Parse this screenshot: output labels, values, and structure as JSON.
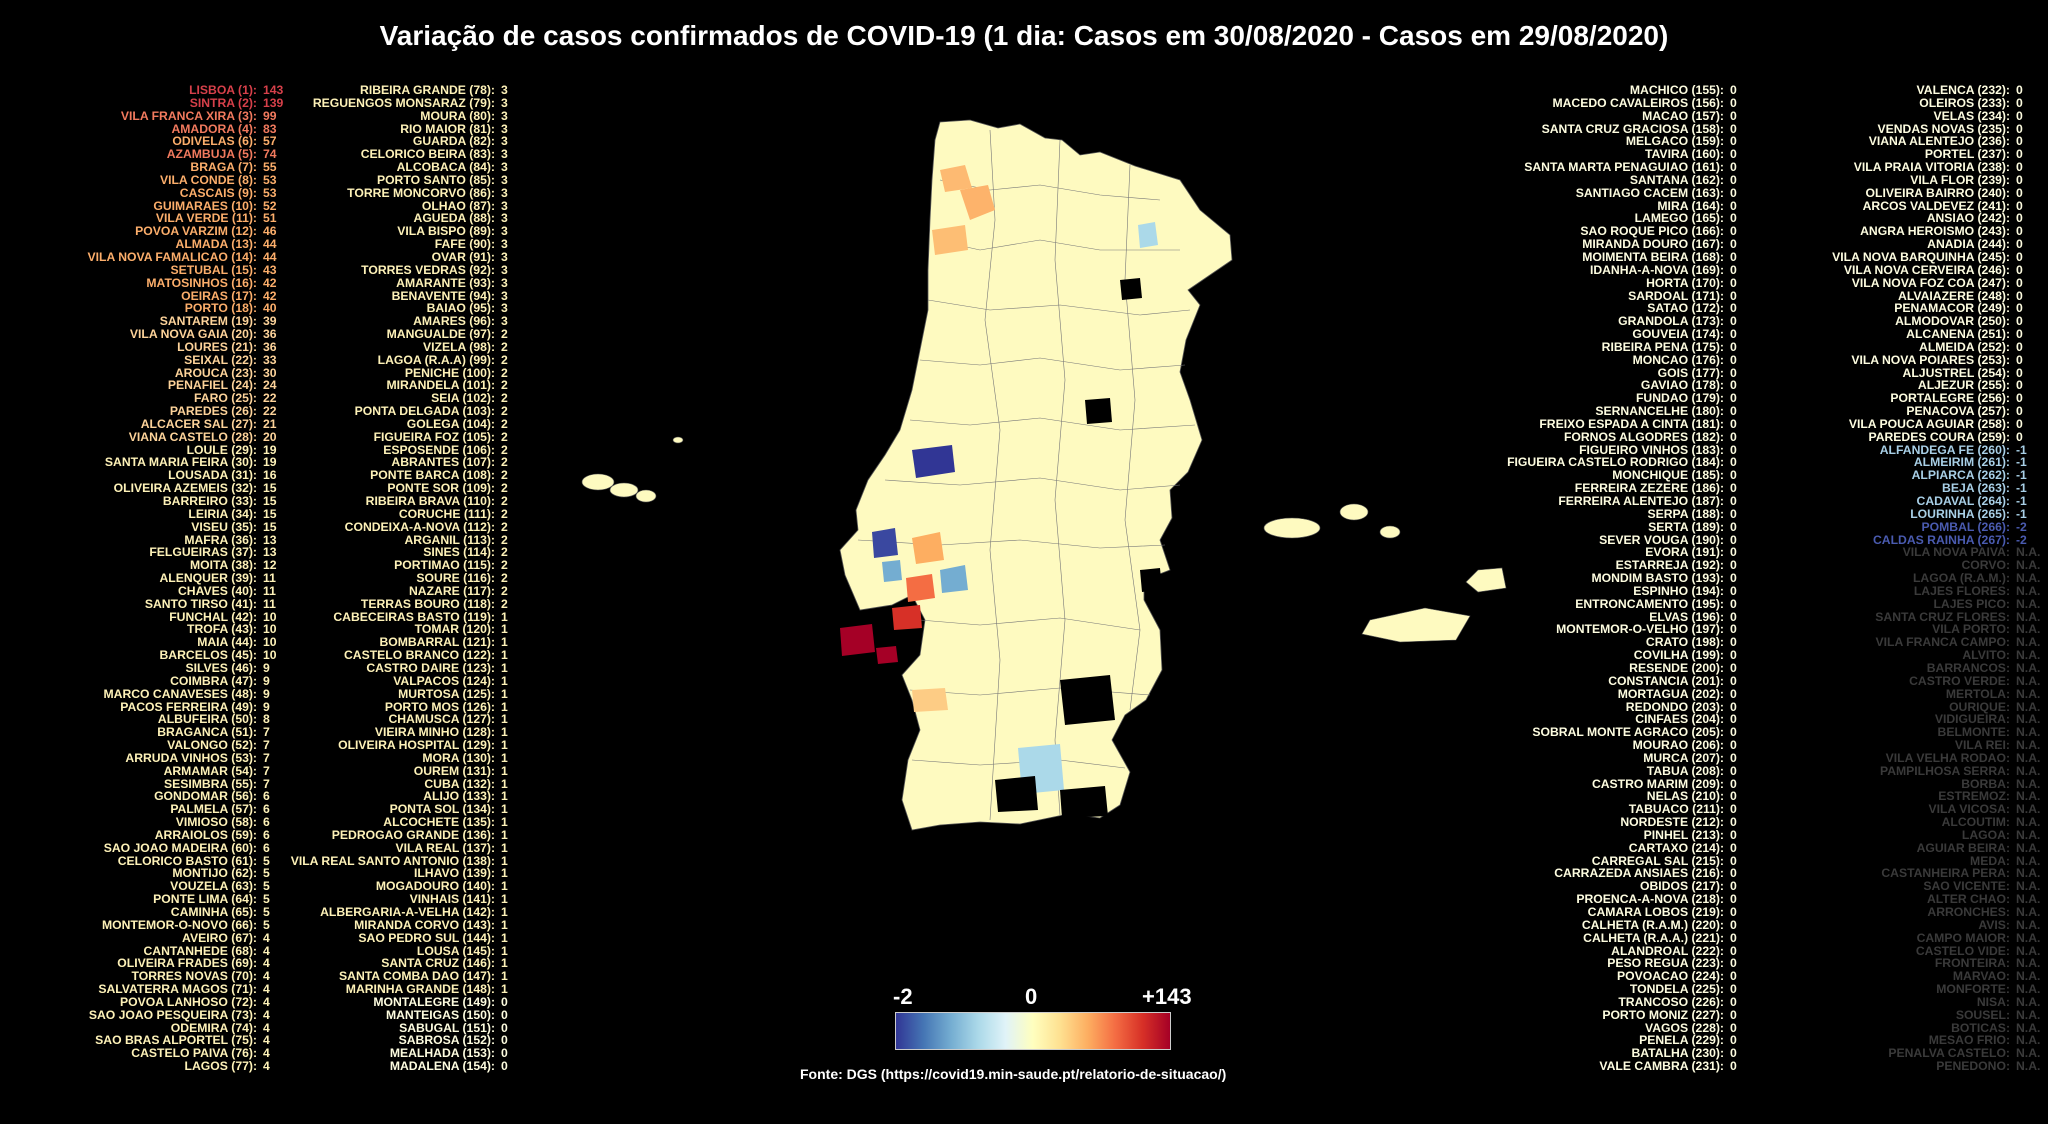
{
  "title": "Variação de casos confirmados de COVID-19 (1 dia: Casos em 30/08/2020 - Casos em 29/08/2020)",
  "colorbar": {
    "min_label": "-2",
    "mid_label": "0",
    "max_label": "+143",
    "colors": [
      "#313695",
      "#4575b4",
      "#74add1",
      "#abd9e9",
      "#e0f3f8",
      "#ffffbf",
      "#fee090",
      "#fdae61",
      "#f46d43",
      "#d73027",
      "#a50026"
    ]
  },
  "source": "Fonte: DGS (https://covid19.min-saude.pt/relatorio-de-situacao/)",
  "columns": [
    [
      [
        "LISBOA (1):",
        "143"
      ],
      [
        "SINTRA (2):",
        "139"
      ],
      [
        "VILA FRANCA XIRA (3):",
        "99"
      ],
      [
        "AMADORA (4):",
        "83"
      ],
      [
        "ODIVELAS (6):",
        "57"
      ],
      [
        "AZAMBUJA (5):",
        "74"
      ],
      [
        "BRAGA (7):",
        "55"
      ],
      [
        "VILA CONDE (8):",
        "53"
      ],
      [
        "CASCAIS (9):",
        "53"
      ],
      [
        "GUIMARAES (10):",
        "52"
      ],
      [
        "VILA VERDE (11):",
        "51"
      ],
      [
        "POVOA VARZIM (12):",
        "46"
      ],
      [
        "ALMADA (13):",
        "44"
      ],
      [
        "VILA NOVA FAMALICAO (14):",
        "44"
      ],
      [
        "SETUBAL (15):",
        "43"
      ],
      [
        "MATOSINHOS (16):",
        "42"
      ],
      [
        "OEIRAS (17):",
        "42"
      ],
      [
        "PORTO (18):",
        "40"
      ],
      [
        "SANTAREM (19):",
        "39"
      ],
      [
        "VILA NOVA GAIA (20):",
        "36"
      ],
      [
        "LOURES (21):",
        "36"
      ],
      [
        "SEIXAL (22):",
        "33"
      ],
      [
        "AROUCA (23):",
        "30"
      ],
      [
        "PENAFIEL (24):",
        "24"
      ],
      [
        "FARO (25):",
        "22"
      ],
      [
        "PAREDES (26):",
        "22"
      ],
      [
        "ALCACER SAL (27):",
        "21"
      ],
      [
        "VIANA CASTELO (28):",
        "20"
      ],
      [
        "LOULE (29):",
        "19"
      ],
      [
        "SANTA MARIA FEIRA (30):",
        "19"
      ],
      [
        "LOUSADA (31):",
        "16"
      ],
      [
        "OLIVEIRA AZEMEIS (32):",
        "15"
      ],
      [
        "BARREIRO (33):",
        "15"
      ],
      [
        "LEIRIA (34):",
        "15"
      ],
      [
        "VISEU (35):",
        "15"
      ],
      [
        "MAFRA (36):",
        "13"
      ],
      [
        "FELGUEIRAS (37):",
        "13"
      ],
      [
        "MOITA (38):",
        "12"
      ],
      [
        "ALENQUER (39):",
        "11"
      ],
      [
        "CHAVES (40):",
        "11"
      ],
      [
        "SANTO TIRSO (41):",
        "11"
      ],
      [
        "FUNCHAL (42):",
        "10"
      ],
      [
        "TROFA (43):",
        "10"
      ],
      [
        "MAIA (44):",
        "10"
      ],
      [
        "BARCELOS (45):",
        "10"
      ],
      [
        "SILVES (46):",
        "9"
      ],
      [
        "COIMBRA (47):",
        "9"
      ],
      [
        "MARCO CANAVESES (48):",
        "9"
      ],
      [
        "PACOS FERREIRA (49):",
        "9"
      ],
      [
        "ALBUFEIRA (50):",
        "8"
      ],
      [
        "BRAGANCA (51):",
        "7"
      ],
      [
        "VALONGO (52):",
        "7"
      ],
      [
        "ARRUDA VINHOS (53):",
        "7"
      ],
      [
        "ARMAMAR (54):",
        "7"
      ],
      [
        "SESIMBRA (55):",
        "7"
      ],
      [
        "GONDOMAR (56):",
        "6"
      ],
      [
        "PALMELA (57):",
        "6"
      ],
      [
        "VIMIOSO (58):",
        "6"
      ],
      [
        "ARRAIOLOS (59):",
        "6"
      ],
      [
        "SAO JOAO MADEIRA (60):",
        "6"
      ],
      [
        "CELORICO BASTO (61):",
        "5"
      ],
      [
        "MONTIJO (62):",
        "5"
      ],
      [
        "VOUZELA (63):",
        "5"
      ],
      [
        "PONTE LIMA (64):",
        "5"
      ],
      [
        "CAMINHA (65):",
        "5"
      ],
      [
        "MONTEMOR-O-NOVO (66):",
        "5"
      ],
      [
        "AVEIRO (67):",
        "4"
      ],
      [
        "CANTANHEDE (68):",
        "4"
      ],
      [
        "OLIVEIRA FRADES (69):",
        "4"
      ],
      [
        "TORRES NOVAS (70):",
        "4"
      ],
      [
        "SALVATERRA MAGOS (71):",
        "4"
      ],
      [
        "POVOA LANHOSO (72):",
        "4"
      ],
      [
        "SAO JOAO PESQUEIRA (73):",
        "4"
      ],
      [
        "ODEMIRA (74):",
        "4"
      ],
      [
        "SAO BRAS ALPORTEL (75):",
        "4"
      ],
      [
        "CASTELO PAIVA (76):",
        "4"
      ],
      [
        "LAGOS (77):",
        "4"
      ]
    ],
    [
      [
        "RIBEIRA GRANDE (78):",
        "3"
      ],
      [
        "REGUENGOS MONSARAZ (79):",
        "3"
      ],
      [
        "MOURA (80):",
        "3"
      ],
      [
        "RIO MAIOR (81):",
        "3"
      ],
      [
        "GUARDA (82):",
        "3"
      ],
      [
        "CELORICO BEIRA (83):",
        "3"
      ],
      [
        "ALCOBACA (84):",
        "3"
      ],
      [
        "PORTO SANTO (85):",
        "3"
      ],
      [
        "TORRE MONCORVO (86):",
        "3"
      ],
      [
        "OLHAO (87):",
        "3"
      ],
      [
        "AGUEDA (88):",
        "3"
      ],
      [
        "VILA BISPO (89):",
        "3"
      ],
      [
        "FAFE (90):",
        "3"
      ],
      [
        "OVAR (91):",
        "3"
      ],
      [
        "TORRES VEDRAS (92):",
        "3"
      ],
      [
        "AMARANTE (93):",
        "3"
      ],
      [
        "BENAVENTE (94):",
        "3"
      ],
      [
        "BAIAO (95):",
        "3"
      ],
      [
        "AMARES (96):",
        "3"
      ],
      [
        "MANGUALDE (97):",
        "2"
      ],
      [
        "VIZELA (98):",
        "2"
      ],
      [
        "LAGOA (R.A.A) (99):",
        "2"
      ],
      [
        "PENICHE (100):",
        "2"
      ],
      [
        "MIRANDELA (101):",
        "2"
      ],
      [
        "SEIA (102):",
        "2"
      ],
      [
        "PONTA DELGADA (103):",
        "2"
      ],
      [
        "GOLEGA (104):",
        "2"
      ],
      [
        "FIGUEIRA FOZ (105):",
        "2"
      ],
      [
        "ESPOSENDE (106):",
        "2"
      ],
      [
        "ABRANTES (107):",
        "2"
      ],
      [
        "PONTE BARCA (108):",
        "2"
      ],
      [
        "PONTE SOR (109):",
        "2"
      ],
      [
        "RIBEIRA BRAVA (110):",
        "2"
      ],
      [
        "CORUCHE (111):",
        "2"
      ],
      [
        "CONDEIXA-A-NOVA (112):",
        "2"
      ],
      [
        "ARGANIL (113):",
        "2"
      ],
      [
        "SINES (114):",
        "2"
      ],
      [
        "PORTIMAO (115):",
        "2"
      ],
      [
        "SOURE (116):",
        "2"
      ],
      [
        "NAZARE (117):",
        "2"
      ],
      [
        "TERRAS BOURO (118):",
        "2"
      ],
      [
        "CABECEIRAS BASTO (119):",
        "1"
      ],
      [
        "TOMAR (120):",
        "1"
      ],
      [
        "BOMBARRAL (121):",
        "1"
      ],
      [
        "CASTELO BRANCO (122):",
        "1"
      ],
      [
        "CASTRO DAIRE (123):",
        "1"
      ],
      [
        "VALPACOS (124):",
        "1"
      ],
      [
        "MURTOSA (125):",
        "1"
      ],
      [
        "PORTO MOS (126):",
        "1"
      ],
      [
        "CHAMUSCA (127):",
        "1"
      ],
      [
        "VIEIRA MINHO (128):",
        "1"
      ],
      [
        "OLIVEIRA HOSPITAL (129):",
        "1"
      ],
      [
        "MORA (130):",
        "1"
      ],
      [
        "OUREM (131):",
        "1"
      ],
      [
        "CUBA (132):",
        "1"
      ],
      [
        "ALIJO (133):",
        "1"
      ],
      [
        "PONTA SOL (134):",
        "1"
      ],
      [
        "ALCOCHETE (135):",
        "1"
      ],
      [
        "PEDROGAO GRANDE (136):",
        "1"
      ],
      [
        "VILA REAL (137):",
        "1"
      ],
      [
        "VILA REAL SANTO ANTONIO (138):",
        "1"
      ],
      [
        "ILHAVO (139):",
        "1"
      ],
      [
        "MOGADOURO (140):",
        "1"
      ],
      [
        "VINHAIS (141):",
        "1"
      ],
      [
        "ALBERGARIA-A-VELHA (142):",
        "1"
      ],
      [
        "MIRANDA CORVO (143):",
        "1"
      ],
      [
        "SAO PEDRO SUL (144):",
        "1"
      ],
      [
        "LOUSA (145):",
        "1"
      ],
      [
        "SANTA CRUZ (146):",
        "1"
      ],
      [
        "SANTA COMBA DAO (147):",
        "1"
      ],
      [
        "MARINHA GRANDE (148):",
        "1"
      ],
      [
        "MONTALEGRE (149):",
        "0"
      ],
      [
        "MANTEIGAS (150):",
        "0"
      ],
      [
        "SABUGAL (151):",
        "0"
      ],
      [
        "SABROSA (152):",
        "0"
      ],
      [
        "MEALHADA (153):",
        "0"
      ],
      [
        "MADALENA (154):",
        "0"
      ]
    ],
    [
      [
        "MACHICO (155):",
        "0"
      ],
      [
        "MACEDO CAVALEIROS (156):",
        "0"
      ],
      [
        "MACAO (157):",
        "0"
      ],
      [
        "SANTA CRUZ GRACIOSA (158):",
        "0"
      ],
      [
        "MELGACO (159):",
        "0"
      ],
      [
        "TAVIRA (160):",
        "0"
      ],
      [
        "SANTA MARTA PENAGUIAO (161):",
        "0"
      ],
      [
        "SANTANA (162):",
        "0"
      ],
      [
        "SANTIAGO CACEM (163):",
        "0"
      ],
      [
        "MIRA (164):",
        "0"
      ],
      [
        "LAMEGO (165):",
        "0"
      ],
      [
        "SAO ROQUE PICO (166):",
        "0"
      ],
      [
        "MIRANDA DOURO (167):",
        "0"
      ],
      [
        "MOIMENTA BEIRA (168):",
        "0"
      ],
      [
        "IDANHA-A-NOVA (169):",
        "0"
      ],
      [
        "HORTA (170):",
        "0"
      ],
      [
        "SARDOAL (171):",
        "0"
      ],
      [
        "SATAO (172):",
        "0"
      ],
      [
        "GRANDOLA (173):",
        "0"
      ],
      [
        "GOUVEIA (174):",
        "0"
      ],
      [
        "RIBEIRA PENA (175):",
        "0"
      ],
      [
        "MONCAO (176):",
        "0"
      ],
      [
        "GOIS (177):",
        "0"
      ],
      [
        "GAVIAO (178):",
        "0"
      ],
      [
        "FUNDAO (179):",
        "0"
      ],
      [
        "SERNANCELHE (180):",
        "0"
      ],
      [
        "FREIXO ESPADA A CINTA (181):",
        "0"
      ],
      [
        "FORNOS ALGODRES (182):",
        "0"
      ],
      [
        "FIGUEIRO VINHOS (183):",
        "0"
      ],
      [
        "FIGUEIRA CASTELO RODRIGO (184):",
        "0"
      ],
      [
        "MONCHIQUE (185):",
        "0"
      ],
      [
        "FERREIRA ZEZERE (186):",
        "0"
      ],
      [
        "FERREIRA ALENTEJO (187):",
        "0"
      ],
      [
        "SERPA (188):",
        "0"
      ],
      [
        "SERTA (189):",
        "0"
      ],
      [
        "SEVER VOUGA (190):",
        "0"
      ],
      [
        "EVORA (191):",
        "0"
      ],
      [
        "ESTARREJA (192):",
        "0"
      ],
      [
        "MONDIM BASTO (193):",
        "0"
      ],
      [
        "ESPINHO (194):",
        "0"
      ],
      [
        "ENTRONCAMENTO (195):",
        "0"
      ],
      [
        "ELVAS (196):",
        "0"
      ],
      [
        "MONTEMOR-O-VELHO (197):",
        "0"
      ],
      [
        "CRATO (198):",
        "0"
      ],
      [
        "COVILHA (199):",
        "0"
      ],
      [
        "RESENDE (200):",
        "0"
      ],
      [
        "CONSTANCIA (201):",
        "0"
      ],
      [
        "MORTAGUA (202):",
        "0"
      ],
      [
        "REDONDO (203):",
        "0"
      ],
      [
        "CINFAES (204):",
        "0"
      ],
      [
        "SOBRAL MONTE AGRACO (205):",
        "0"
      ],
      [
        "MOURAO (206):",
        "0"
      ],
      [
        "MURCA (207):",
        "0"
      ],
      [
        "TABUA (208):",
        "0"
      ],
      [
        "CASTRO MARIM (209):",
        "0"
      ],
      [
        "NELAS (210):",
        "0"
      ],
      [
        "TABUACO (211):",
        "0"
      ],
      [
        "NORDESTE (212):",
        "0"
      ],
      [
        "PINHEL (213):",
        "0"
      ],
      [
        "CARTAXO (214):",
        "0"
      ],
      [
        "CARREGAL SAL (215):",
        "0"
      ],
      [
        "CARRAZEDA ANSIAES (216):",
        "0"
      ],
      [
        "OBIDOS (217):",
        "0"
      ],
      [
        "PROENCA-A-NOVA (218):",
        "0"
      ],
      [
        "CAMARA LOBOS (219):",
        "0"
      ],
      [
        "CALHETA (R.A.M.) (220):",
        "0"
      ],
      [
        "CALHETA (R.A.A.) (221):",
        "0"
      ],
      [
        "ALANDROAL (222):",
        "0"
      ],
      [
        "PESO REGUA (223):",
        "0"
      ],
      [
        "POVOACAO (224):",
        "0"
      ],
      [
        "TONDELA (225):",
        "0"
      ],
      [
        "TRANCOSO (226):",
        "0"
      ],
      [
        "PORTO MONIZ (227):",
        "0"
      ],
      [
        "VAGOS (228):",
        "0"
      ],
      [
        "PENELA (229):",
        "0"
      ],
      [
        "BATALHA (230):",
        "0"
      ],
      [
        "VALE CAMBRA (231):",
        "0"
      ]
    ],
    [
      [
        "VALENCA (232):",
        "0"
      ],
      [
        "OLEIROS (233):",
        "0"
      ],
      [
        "VELAS (234):",
        "0"
      ],
      [
        "VENDAS NOVAS (235):",
        "0"
      ],
      [
        "VIANA ALENTEJO (236):",
        "0"
      ],
      [
        "PORTEL (237):",
        "0"
      ],
      [
        "VILA PRAIA VITORIA (238):",
        "0"
      ],
      [
        "VILA FLOR (239):",
        "0"
      ],
      [
        "OLIVEIRA BAIRRO (240):",
        "0"
      ],
      [
        "ARCOS VALDEVEZ (241):",
        "0"
      ],
      [
        "ANSIAO (242):",
        "0"
      ],
      [
        "ANGRA HEROISMO (243):",
        "0"
      ],
      [
        "ANADIA (244):",
        "0"
      ],
      [
        "VILA NOVA BARQUINHA (245):",
        "0"
      ],
      [
        "VILA NOVA CERVEIRA (246):",
        "0"
      ],
      [
        "VILA NOVA FOZ COA (247):",
        "0"
      ],
      [
        "ALVAIAZERE (248):",
        "0"
      ],
      [
        "PENAMACOR (249):",
        "0"
      ],
      [
        "ALMODOVAR (250):",
        "0"
      ],
      [
        "ALCANENA (251):",
        "0"
      ],
      [
        "ALMEIDA (252):",
        "0"
      ],
      [
        "VILA NOVA POIARES (253):",
        "0"
      ],
      [
        "ALJUSTREL (254):",
        "0"
      ],
      [
        "ALJEZUR (255):",
        "0"
      ],
      [
        "PORTALEGRE (256):",
        "0"
      ],
      [
        "PENACOVA (257):",
        "0"
      ],
      [
        "VILA POUCA AGUIAR (258):",
        "0"
      ],
      [
        "PAREDES COURA (259):",
        "0"
      ],
      [
        "ALFANDEGA FE (260):",
        "-1"
      ],
      [
        "ALMEIRIM (261):",
        "-1"
      ],
      [
        "ALPIARCA (262):",
        "-1"
      ],
      [
        "BEJA (263):",
        "-1"
      ],
      [
        "CADAVAL (264):",
        "-1"
      ],
      [
        "LOURINHA (265):",
        "-1"
      ],
      [
        "POMBAL (266):",
        "-2"
      ],
      [
        "CALDAS RAINHA (267):",
        "-2"
      ],
      [
        "VILA NOVA PAIVA:",
        "N.A."
      ],
      [
        "CORVO:",
        "N.A."
      ],
      [
        "LAGOA (R.A.M.):",
        "N.A."
      ],
      [
        "LAJES FLORES:",
        "N.A."
      ],
      [
        "LAJES PICO:",
        "N.A."
      ],
      [
        "SANTA CRUZ FLORES:",
        "N.A."
      ],
      [
        "VILA PORTO:",
        "N.A."
      ],
      [
        "VILA FRANCA CAMPO:",
        "N.A."
      ],
      [
        "ALVITO:",
        "N.A."
      ],
      [
        "BARRANCOS:",
        "N.A."
      ],
      [
        "CASTRO VERDE:",
        "N.A."
      ],
      [
        "MERTOLA:",
        "N.A."
      ],
      [
        "OURIQUE:",
        "N.A."
      ],
      [
        "VIDIGUEIRA:",
        "N.A."
      ],
      [
        "BELMONTE:",
        "N.A."
      ],
      [
        "VILA REI:",
        "N.A."
      ],
      [
        "VILA VELHA RODAO:",
        "N.A."
      ],
      [
        "PAMPILHOSA SERRA:",
        "N.A."
      ],
      [
        "BORBA:",
        "N.A."
      ],
      [
        "ESTREMOZ:",
        "N.A."
      ],
      [
        "VILA VICOSA:",
        "N.A."
      ],
      [
        "ALCOUTIM:",
        "N.A."
      ],
      [
        "LAGOA:",
        "N.A."
      ],
      [
        "AGUIAR BEIRA:",
        "N.A."
      ],
      [
        "MEDA:",
        "N.A."
      ],
      [
        "CASTANHEIRA PERA:",
        "N.A."
      ],
      [
        "SAO VICENTE:",
        "N.A."
      ],
      [
        "ALTER CHAO:",
        "N.A."
      ],
      [
        "ARRONCHES:",
        "N.A."
      ],
      [
        "AVIS:",
        "N.A."
      ],
      [
        "CAMPO MAIOR:",
        "N.A."
      ],
      [
        "CASTELO VIDE:",
        "N.A."
      ],
      [
        "FRONTEIRA:",
        "N.A."
      ],
      [
        "MARVAO:",
        "N.A."
      ],
      [
        "MONFORTE:",
        "N.A."
      ],
      [
        "NISA:",
        "N.A."
      ],
      [
        "SOUSEL:",
        "N.A."
      ],
      [
        "BOTICAS:",
        "N.A."
      ],
      [
        "MESAO FRIO:",
        "N.A."
      ],
      [
        "PENALVA CASTELO:",
        "N.A."
      ],
      [
        "PENEDONO:",
        "N.A."
      ]
    ]
  ]
}
